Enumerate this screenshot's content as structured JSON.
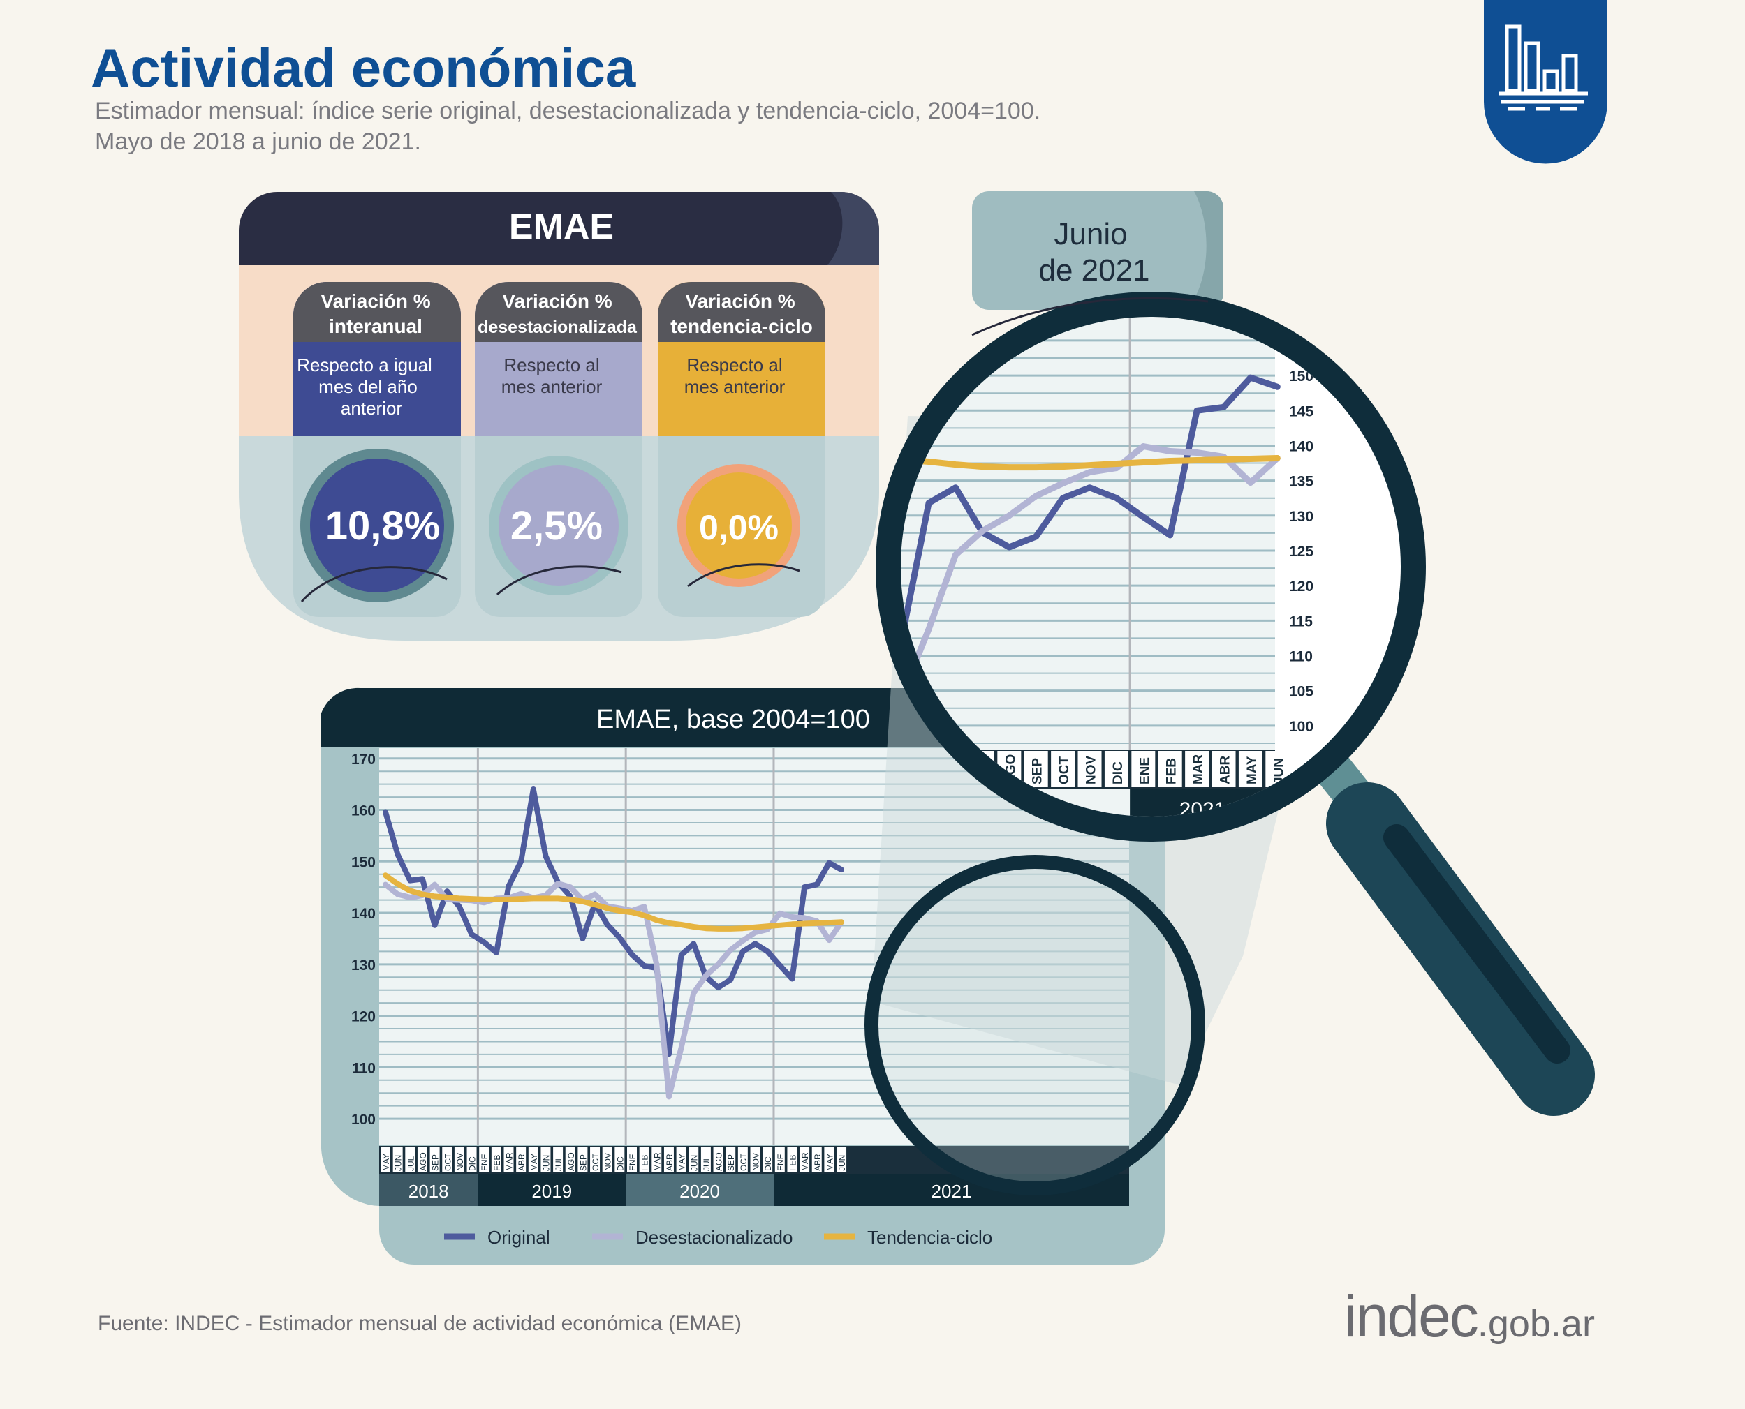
{
  "header": {
    "title": "Actividad económica",
    "subtitle_line1": "Estimador mensual: índice serie original, desestacionalizada y tendencia-ciclo, 2004=100.",
    "subtitle_line2": "Mayo de 2018 a junio de 2021."
  },
  "panel": {
    "title": "EMAE",
    "cards": [
      {
        "header_line1": "Variación %",
        "header_line2": "interanual",
        "desc_line1": "Respecto a igual",
        "desc_line2": "mes del año",
        "desc_line3": "anterior",
        "value": "10,8%"
      },
      {
        "header_line1": "Variación %",
        "header_line2": "desestacionalizada",
        "desc_line1": "Respecto al",
        "desc_line2": "mes anterior",
        "desc_line3": "",
        "value": "2,5%"
      },
      {
        "header_line1": "Variación %",
        "header_line2": "tendencia-ciclo",
        "desc_line1": "Respecto al",
        "desc_line2": "mes anterior",
        "desc_line3": "",
        "value": "0,0%"
      }
    ]
  },
  "tag": {
    "line1": "Junio",
    "line2": "de 2021"
  },
  "chart_data": {
    "type": "line",
    "title": "EMAE, base  2004=100",
    "x": [
      "MAY",
      "JUN",
      "JUL",
      "AGO",
      "SEP",
      "OCT",
      "NOV",
      "DIC",
      "ENE",
      "FEB",
      "MAR",
      "ABR",
      "MAY",
      "JUN",
      "JUL",
      "AGO",
      "SEP",
      "OCT",
      "NOV",
      "DIC",
      "ENE",
      "FEB",
      "MAR",
      "ABR",
      "MAY",
      "JUN",
      "JUL",
      "AGO",
      "SEP",
      "OCT",
      "NOV",
      "DIC",
      "ENE",
      "FEB",
      "MAR",
      "ABR",
      "MAY",
      "JUN"
    ],
    "years": [
      {
        "label": "2018",
        "start": 0,
        "count": 8
      },
      {
        "label": "2019",
        "start": 8,
        "count": 12
      },
      {
        "label": "2020",
        "start": 20,
        "count": 12
      },
      {
        "label": "2021",
        "start": 32,
        "count": 6
      }
    ],
    "ylim": [
      95,
      172
    ],
    "yticks": [
      100,
      110,
      120,
      130,
      140,
      150,
      160,
      170
    ],
    "series": [
      {
        "name": "Original",
        "values": [
          159.6,
          151.3,
          146.3,
          146.6,
          137.6,
          144.2,
          141.2,
          135.8,
          134.3,
          132.3,
          145.2,
          150.0,
          164.0,
          151.0,
          145.9,
          143.2,
          135.0,
          141.8,
          137.7,
          135.2,
          131.9,
          129.7,
          129.3,
          112.6,
          131.8,
          134.0,
          127.6,
          125.5,
          127.0,
          132.5,
          134.0,
          132.5,
          129.8,
          127.2,
          145.0,
          145.5,
          149.7,
          148.4
        ]
      },
      {
        "name": "Desestacionalizado",
        "values": [
          145.5,
          143.6,
          143.0,
          143.4,
          145.5,
          142.6,
          142.5,
          142.4,
          142.0,
          142.8,
          142.9,
          143.7,
          142.9,
          143.4,
          145.7,
          145.0,
          142.5,
          143.6,
          141.3,
          140.9,
          140.4,
          141.2,
          130.0,
          104.3,
          113.8,
          124.4,
          127.8,
          130.0,
          132.8,
          134.6,
          136.2,
          136.8,
          139.9,
          139.2,
          139.0,
          138.4,
          134.7,
          138.2
        ]
      },
      {
        "name": "Tendencia-ciclo",
        "values": [
          147.3,
          145.6,
          144.3,
          143.6,
          143.2,
          143.0,
          142.8,
          142.7,
          142.6,
          142.6,
          142.6,
          142.7,
          142.8,
          142.8,
          142.8,
          142.6,
          142.2,
          141.6,
          140.9,
          140.4,
          140.1,
          139.5,
          138.6,
          138.0,
          137.7,
          137.3,
          137.0,
          136.9,
          136.9,
          137.0,
          137.2,
          137.4,
          137.6,
          137.8,
          137.9,
          138.0,
          138.1,
          138.2
        ]
      }
    ],
    "colors": [
      "#4e5b9d",
      "#b2b4d4",
      "#e6b440"
    ],
    "zoom_yticks": [
      100,
      105,
      110,
      115,
      120,
      125,
      130,
      135,
      140,
      145,
      150
    ],
    "zoom_ylim": [
      96,
      153
    ]
  },
  "footer": {
    "source": "Fuente: INDEC - Estimador mensual de actividad económica (EMAE)",
    "logo_main": "indec",
    "logo_domain": ".gob.ar"
  },
  "icons": {
    "corner": "bar-chart-icon",
    "magnifier": "magnifier-icon"
  }
}
